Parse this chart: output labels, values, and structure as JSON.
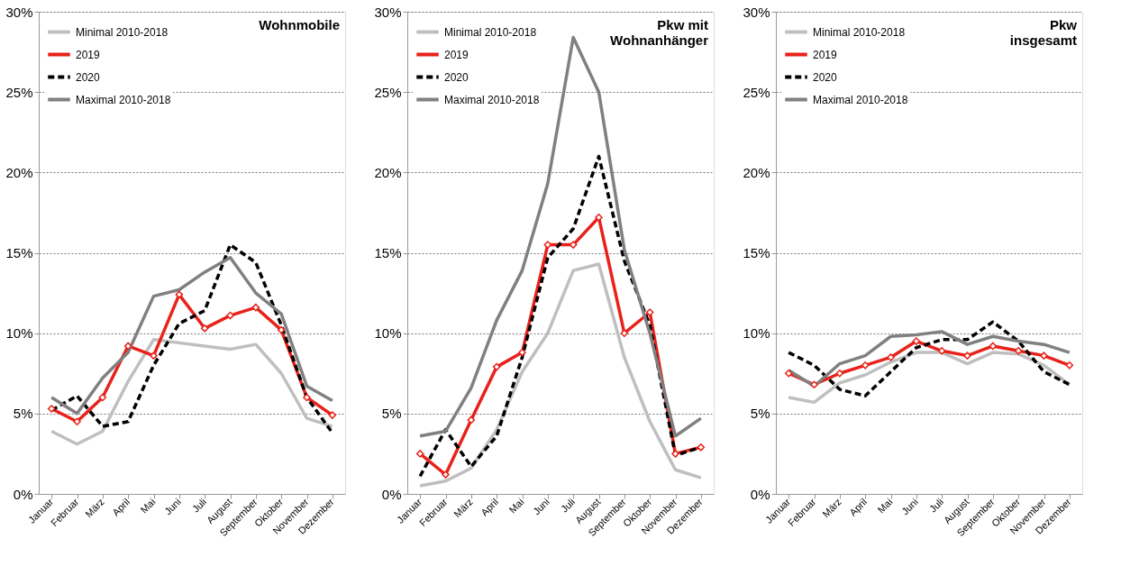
{
  "chart_data": [
    {
      "type": "line",
      "title": "Wohnmobile",
      "categories": [
        "Januar",
        "Februar",
        "März",
        "April",
        "Mai",
        "Juni",
        "Juli",
        "August",
        "September",
        "Oktober",
        "November",
        "Dezember"
      ],
      "series": [
        {
          "name": "Minimal 2010-2018",
          "color": "#bfbfbf",
          "line_style": "solid",
          "values": [
            3.9,
            3.1,
            3.9,
            7.0,
            9.6,
            9.4,
            9.2,
            9.0,
            9.3,
            7.5,
            4.7,
            4.2
          ]
        },
        {
          "name": "2019",
          "color": "#e8221a",
          "line_style": "solid",
          "marker": "diamond",
          "values": [
            5.3,
            4.5,
            6.0,
            9.2,
            8.6,
            12.4,
            10.3,
            11.1,
            11.6,
            10.2,
            6.0,
            4.9
          ]
        },
        {
          "name": "2020",
          "color": "#000000",
          "line_style": "dashed",
          "values": [
            5.2,
            6.1,
            4.2,
            4.5,
            8.0,
            10.6,
            11.4,
            15.5,
            14.4,
            10.5,
            6.0,
            3.8
          ]
        },
        {
          "name": "Maximal 2010-2018",
          "color": "#808080",
          "line_style": "solid",
          "values": [
            6.0,
            5.0,
            7.2,
            8.8,
            12.3,
            12.7,
            13.8,
            14.7,
            12.5,
            11.2,
            6.7,
            5.8
          ]
        }
      ],
      "ylim": [
        0,
        30
      ],
      "yticks": [
        {
          "value": 0,
          "label": "0%"
        },
        {
          "value": 5,
          "label": "5%"
        },
        {
          "value": 10,
          "label": "10%"
        },
        {
          "value": 15,
          "label": "15%"
        },
        {
          "value": 20,
          "label": "20%"
        },
        {
          "value": 25,
          "label": "25%"
        },
        {
          "value": 30,
          "label": "30%"
        }
      ],
      "grid": "y",
      "legend": "top left"
    },
    {
      "type": "line",
      "title": "Pkw mit\nWohnanhänger",
      "categories": [
        "Januar",
        "Februar",
        "März",
        "April",
        "Mai",
        "Juni",
        "Juli",
        "August",
        "September",
        "Oktober",
        "November",
        "Dezember"
      ],
      "series": [
        {
          "name": "Minimal 2010-2018",
          "color": "#bfbfbf",
          "line_style": "solid",
          "values": [
            0.5,
            0.8,
            1.6,
            4.0,
            7.6,
            10.0,
            13.9,
            14.3,
            8.5,
            4.5,
            1.5,
            1.0
          ]
        },
        {
          "name": "2019",
          "color": "#e8221a",
          "line_style": "solid",
          "marker": "diamond",
          "values": [
            2.5,
            1.2,
            4.6,
            7.9,
            8.8,
            15.5,
            15.5,
            17.2,
            10.0,
            11.3,
            2.5,
            2.9
          ]
        },
        {
          "name": "2020",
          "color": "#000000",
          "line_style": "dashed",
          "values": [
            1.1,
            4.0,
            1.7,
            3.6,
            8.5,
            14.7,
            16.5,
            21.0,
            14.5,
            10.5,
            2.4,
            2.9
          ]
        },
        {
          "name": "Maximal 2010-2018",
          "color": "#808080",
          "line_style": "solid",
          "values": [
            3.6,
            3.9,
            6.6,
            10.8,
            13.9,
            19.3,
            28.4,
            25.0,
            15.2,
            10.0,
            3.6,
            4.7
          ]
        }
      ],
      "ylim": [
        0,
        30
      ],
      "yticks": [
        {
          "value": 0,
          "label": "0%"
        },
        {
          "value": 5,
          "label": "5%"
        },
        {
          "value": 10,
          "label": "10%"
        },
        {
          "value": 15,
          "label": "15%"
        },
        {
          "value": 20,
          "label": "20%"
        },
        {
          "value": 25,
          "label": "25%"
        },
        {
          "value": 30,
          "label": "30%"
        }
      ],
      "grid": "y",
      "legend": "top left"
    },
    {
      "type": "line",
      "title": "Pkw\ninsgesamt",
      "categories": [
        "Januar",
        "Februar",
        "März",
        "April",
        "Mai",
        "Juni",
        "Juli",
        "August",
        "September",
        "Oktober",
        "November",
        "Dezember"
      ],
      "series": [
        {
          "name": "Minimal 2010-2018",
          "color": "#bfbfbf",
          "line_style": "solid",
          "values": [
            6.0,
            5.7,
            6.9,
            7.4,
            8.2,
            8.8,
            8.8,
            8.1,
            8.8,
            8.7,
            8.0,
            6.8
          ]
        },
        {
          "name": "2019",
          "color": "#e8221a",
          "line_style": "solid",
          "marker": "diamond",
          "values": [
            7.5,
            6.8,
            7.5,
            8.0,
            8.5,
            9.5,
            8.9,
            8.6,
            9.2,
            8.9,
            8.6,
            8.0
          ]
        },
        {
          "name": "2020",
          "color": "#000000",
          "line_style": "dashed",
          "values": [
            8.8,
            8.0,
            6.5,
            6.1,
            7.6,
            9.1,
            9.6,
            9.6,
            10.7,
            9.5,
            7.6,
            6.8
          ]
        },
        {
          "name": "Maximal 2010-2018",
          "color": "#808080",
          "line_style": "solid",
          "values": [
            7.7,
            6.7,
            8.1,
            8.6,
            9.8,
            9.9,
            10.1,
            9.3,
            9.8,
            9.5,
            9.3,
            8.8
          ]
        }
      ],
      "ylim": [
        0,
        30
      ],
      "yticks": [
        {
          "value": 0,
          "label": "0%"
        },
        {
          "value": 5,
          "label": "5%"
        },
        {
          "value": 10,
          "label": "10%"
        },
        {
          "value": 15,
          "label": "15%"
        },
        {
          "value": 20,
          "label": "20%"
        },
        {
          "value": 25,
          "label": "25%"
        },
        {
          "value": 30,
          "label": "30%"
        }
      ],
      "grid": "y",
      "legend": "top left"
    }
  ]
}
